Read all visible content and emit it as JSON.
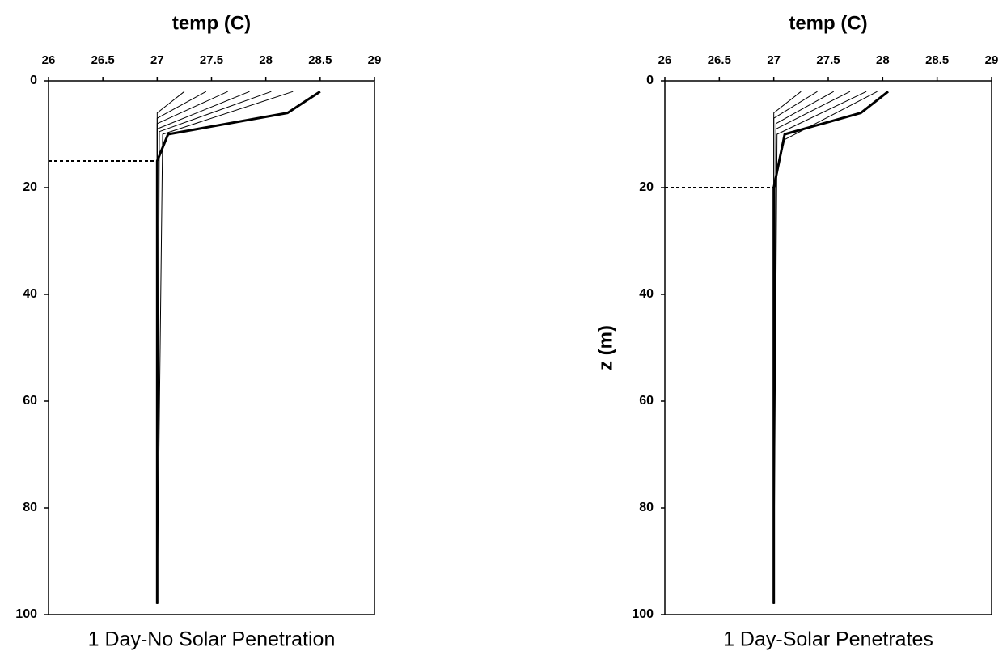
{
  "chart_data": [
    {
      "type": "line",
      "title": "1 Day-No Solar Penetration",
      "x_label": "temp (C)",
      "xlim": [
        26,
        29
      ],
      "xticks": [
        26,
        26.5,
        27,
        27.5,
        28,
        28.5,
        29
      ],
      "ylim": [
        0,
        100
      ],
      "yticks": [
        0,
        20,
        40,
        60,
        80,
        100
      ],
      "y_inverted": true,
      "series": [
        {
          "color": "#000000",
          "line_width": 1,
          "x": [
            27,
            27,
            27.25
          ],
          "values": [
            98,
            6,
            2
          ]
        },
        {
          "color": "#000000",
          "line_width": 1,
          "x": [
            27,
            27,
            27.45
          ],
          "values": [
            98,
            7,
            2
          ]
        },
        {
          "color": "#000000",
          "line_width": 1,
          "x": [
            27,
            27,
            27.65
          ],
          "values": [
            98,
            8,
            2
          ]
        },
        {
          "color": "#000000",
          "line_width": 1,
          "x": [
            27,
            27,
            27.85
          ],
          "values": [
            98,
            9,
            2
          ]
        },
        {
          "color": "#000000",
          "line_width": 1,
          "x": [
            27,
            27.02,
            28.05
          ],
          "values": [
            98,
            9.5,
            2
          ]
        },
        {
          "color": "#000000",
          "line_width": 1,
          "x": [
            27,
            27.05,
            28.25
          ],
          "values": [
            98,
            10,
            2
          ]
        },
        {
          "color": "#000000",
          "line_width": 3,
          "x": [
            27,
            27,
            27.1,
            28.2,
            28.5
          ],
          "values": [
            98,
            15,
            10,
            6,
            2
          ]
        },
        {
          "color": "#000000",
          "line_width": 2,
          "dashed": true,
          "x": [
            26,
            27
          ],
          "values": [
            15,
            15
          ]
        }
      ]
    },
    {
      "type": "line",
      "title": "1 Day-Solar Penetrates",
      "x_label": "temp (C)",
      "y_label": "z (m)",
      "xlim": [
        26,
        29
      ],
      "xticks": [
        26,
        26.5,
        27,
        27.5,
        28,
        28.5,
        29
      ],
      "ylim": [
        0,
        100
      ],
      "yticks": [
        0,
        20,
        40,
        60,
        80,
        100
      ],
      "y_inverted": true,
      "series": [
        {
          "color": "#000000",
          "line_width": 1,
          "x": [
            27,
            27,
            27.25
          ],
          "values": [
            98,
            6,
            2
          ]
        },
        {
          "color": "#000000",
          "line_width": 1,
          "x": [
            27,
            27,
            27.4
          ],
          "values": [
            98,
            7,
            2
          ]
        },
        {
          "color": "#000000",
          "line_width": 1,
          "x": [
            27,
            27.02,
            27.55
          ],
          "values": [
            98,
            8,
            2
          ]
        },
        {
          "color": "#000000",
          "line_width": 1,
          "x": [
            27,
            27.02,
            27.7
          ],
          "values": [
            98,
            9,
            2
          ]
        },
        {
          "color": "#000000",
          "line_width": 1,
          "x": [
            27,
            27.03,
            27.85
          ],
          "values": [
            98,
            10,
            2
          ]
        },
        {
          "color": "#000000",
          "line_width": 1,
          "x": [
            27,
            27.02,
            27.1,
            27.95
          ],
          "values": [
            98,
            18,
            11,
            2
          ]
        },
        {
          "color": "#000000",
          "line_width": 3,
          "x": [
            27,
            27,
            27.1,
            27.8,
            28.05
          ],
          "values": [
            98,
            20,
            10,
            6,
            2
          ]
        },
        {
          "color": "#000000",
          "line_width": 2,
          "dashed": true,
          "x": [
            26,
            27
          ],
          "values": [
            20,
            20
          ]
        }
      ]
    }
  ]
}
